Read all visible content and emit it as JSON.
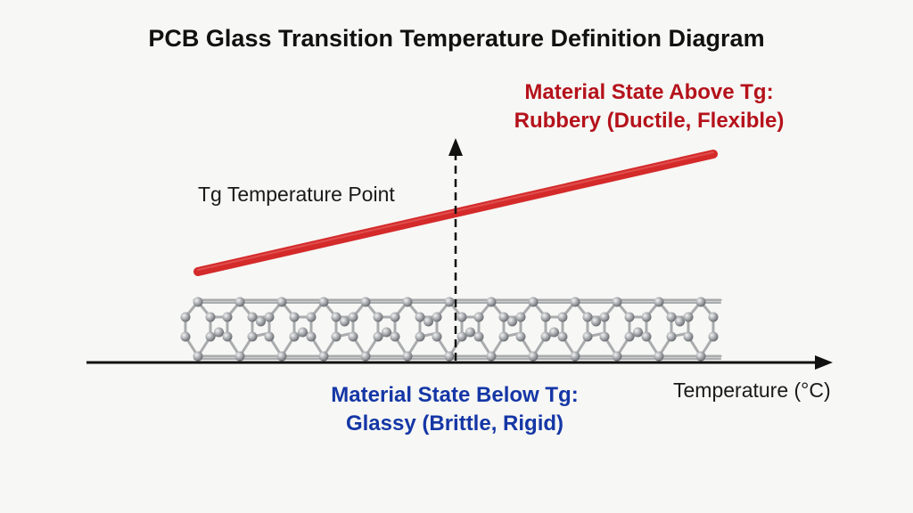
{
  "title": "PCB Glass Transition Temperature Definition Diagram",
  "above_tg": {
    "line1": "Material State Above Tg:",
    "line2": "Rubbery (Ductile, Flexible)",
    "color": "#b5121b"
  },
  "below_tg": {
    "line1": "Material State Below Tg:",
    "line2": "Glassy (Brittle, Rigid)",
    "color": "#1537a6"
  },
  "tg_label": "Tg Temperature Point",
  "x_axis_label": "Temperature (°C)",
  "colors": {
    "rubbery_line": "#d42a2a",
    "axis": "#111111",
    "lattice_bond": "#a9abad",
    "lattice_atom": "#9a9ca0"
  },
  "icons": [
    "x-axis-arrow-icon",
    "tg-arrow-icon",
    "molecular-lattice-icon"
  ]
}
